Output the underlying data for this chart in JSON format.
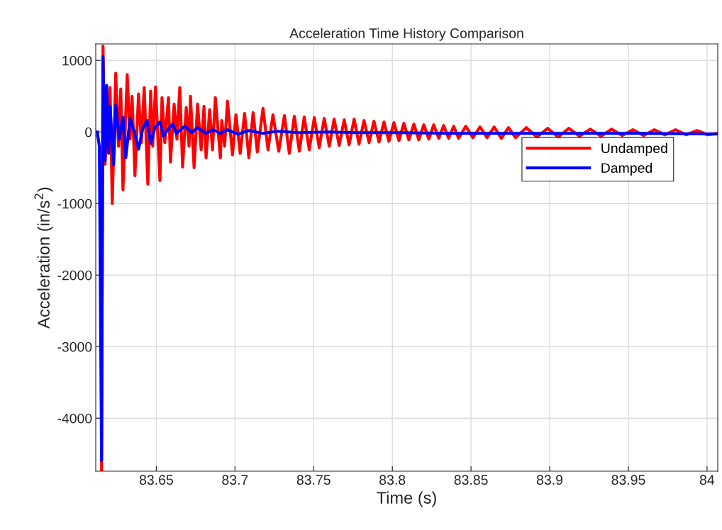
{
  "chart_data": {
    "type": "line",
    "title": "Acceleration Time History Comparison",
    "xlabel": "Time (s)",
    "ylabel": "Acceleration (in/s$^{2}$)",
    "xlim": [
      83.6115,
      84.0068
    ],
    "ylim": [
      -4740,
      1230
    ],
    "xticks": [
      83.65,
      83.7,
      83.75,
      83.8,
      83.85,
      83.9,
      83.95,
      84
    ],
    "yticks": [
      -4000,
      -3000,
      -2000,
      -1000,
      0,
      1000
    ],
    "grid": true,
    "legend": "right",
    "marker": "none",
    "line_style": "solid",
    "series": [
      {
        "name": "Undamped",
        "color": "#ff0000",
        "x": [
          83.6152,
          83.6161,
          83.6174,
          83.6193,
          83.6206,
          83.622,
          83.6242,
          83.626,
          83.6274,
          83.6288,
          83.6315,
          83.6333,
          83.6346,
          83.6364,
          83.6387,
          83.6405,
          83.6423,
          83.6446,
          83.6464,
          83.6477,
          83.6495,
          83.6523,
          83.6536,
          83.6554,
          83.6577,
          83.659,
          83.6613,
          83.6631,
          83.6649,
          83.6667,
          83.669,
          83.6708,
          83.6717,
          83.674,
          83.6762,
          83.6785,
          83.6803,
          83.6816,
          83.6839,
          83.6857,
          83.6875,
          83.6907,
          83.6916,
          83.6934,
          83.6952,
          83.6984,
          83.7006,
          83.7033,
          83.7061,
          83.7088,
          83.7115,
          83.7142,
          83.7178,
          83.721,
          83.7241,
          83.7278,
          83.7314,
          83.7345,
          83.7377,
          83.7409,
          83.744,
          83.7472,
          83.7504,
          83.7535,
          83.7567,
          83.7599,
          83.763,
          83.7662,
          83.7694,
          83.7725,
          83.7757,
          83.7788,
          83.782,
          83.7852,
          83.7883,
          83.7915,
          83.7947,
          83.7978,
          83.801,
          83.8042,
          83.8073,
          83.8105,
          83.8137,
          83.8168,
          83.82,
          83.8232,
          83.8263,
          83.8295,
          83.8326,
          83.8358,
          83.839,
          83.8421,
          83.8467,
          83.8512,
          83.8557,
          83.8602,
          83.8647,
          83.8693,
          83.8738,
          83.8783,
          83.8851,
          83.8919,
          83.8987,
          83.9054,
          83.9122,
          83.919,
          83.9258,
          83.9326,
          83.9393,
          83.9461,
          83.9529,
          83.9597,
          83.9665,
          83.9732,
          83.98,
          83.9868,
          83.9936,
          84.0004,
          84.0063
        ],
        "values": [
          -4720,
          1200,
          -450,
          300,
          620,
          -1000,
          820,
          -200,
          600,
          -810,
          800,
          -100,
          500,
          -610,
          530,
          -150,
          620,
          -730,
          570,
          -200,
          630,
          -680,
          480,
          -150,
          480,
          -420,
          390,
          -100,
          620,
          -490,
          340,
          -200,
          500,
          -500,
          390,
          -250,
          360,
          -360,
          310,
          -250,
          480,
          -360,
          160,
          -200,
          430,
          -320,
          240,
          -300,
          260,
          -360,
          270,
          -280,
          330,
          -250,
          240,
          -270,
          230,
          -300,
          220,
          -270,
          210,
          -250,
          200,
          -220,
          190,
          -200,
          180,
          -190,
          170,
          -180,
          180,
          -170,
          160,
          -150,
          150,
          -140,
          140,
          -130,
          130,
          -120,
          120,
          -110,
          110,
          -110,
          100,
          -100,
          100,
          -90,
          90,
          -90,
          80,
          -90,
          80,
          -80,
          70,
          -80,
          70,
          -90,
          60,
          -80,
          60,
          -70,
          50,
          -70,
          50,
          -60,
          40,
          -60,
          40,
          -50,
          30,
          -50,
          30,
          -40,
          30,
          -40,
          20,
          -40,
          -20
        ]
      },
      {
        "name": "Damped",
        "color": "#0000ff",
        "x": [
          83.6125,
          83.6138,
          83.6152,
          83.6161,
          83.6174,
          83.6184,
          83.6197,
          83.6206,
          83.6229,
          83.6242,
          83.6265,
          83.6288,
          83.6306,
          83.6333,
          83.636,
          83.6387,
          83.6414,
          83.6441,
          83.6464,
          83.6491,
          83.6523,
          83.6545,
          83.6572,
          83.6604,
          83.6627,
          83.6654,
          83.6681,
          83.6726,
          83.6762,
          83.6816,
          83.6862,
          83.6907,
          83.6952,
          83.702,
          83.7088,
          83.7178,
          83.7269,
          83.7404,
          83.7585,
          83.7766,
          83.8037,
          83.8399,
          83.8761,
          83.9122,
          83.9574,
          84.0063
        ],
        "values": [
          0,
          -200,
          -4590,
          1050,
          -400,
          650,
          -300,
          360,
          -460,
          370,
          -100,
          210,
          -360,
          190,
          0,
          -240,
          50,
          160,
          -160,
          60,
          140,
          -60,
          30,
          110,
          -20,
          30,
          80,
          -10,
          60,
          -20,
          30,
          -20,
          30,
          -30,
          20,
          -20,
          10,
          -10,
          0,
          -10,
          -10,
          -20,
          -20,
          -20,
          -20,
          -30
        ]
      }
    ]
  }
}
